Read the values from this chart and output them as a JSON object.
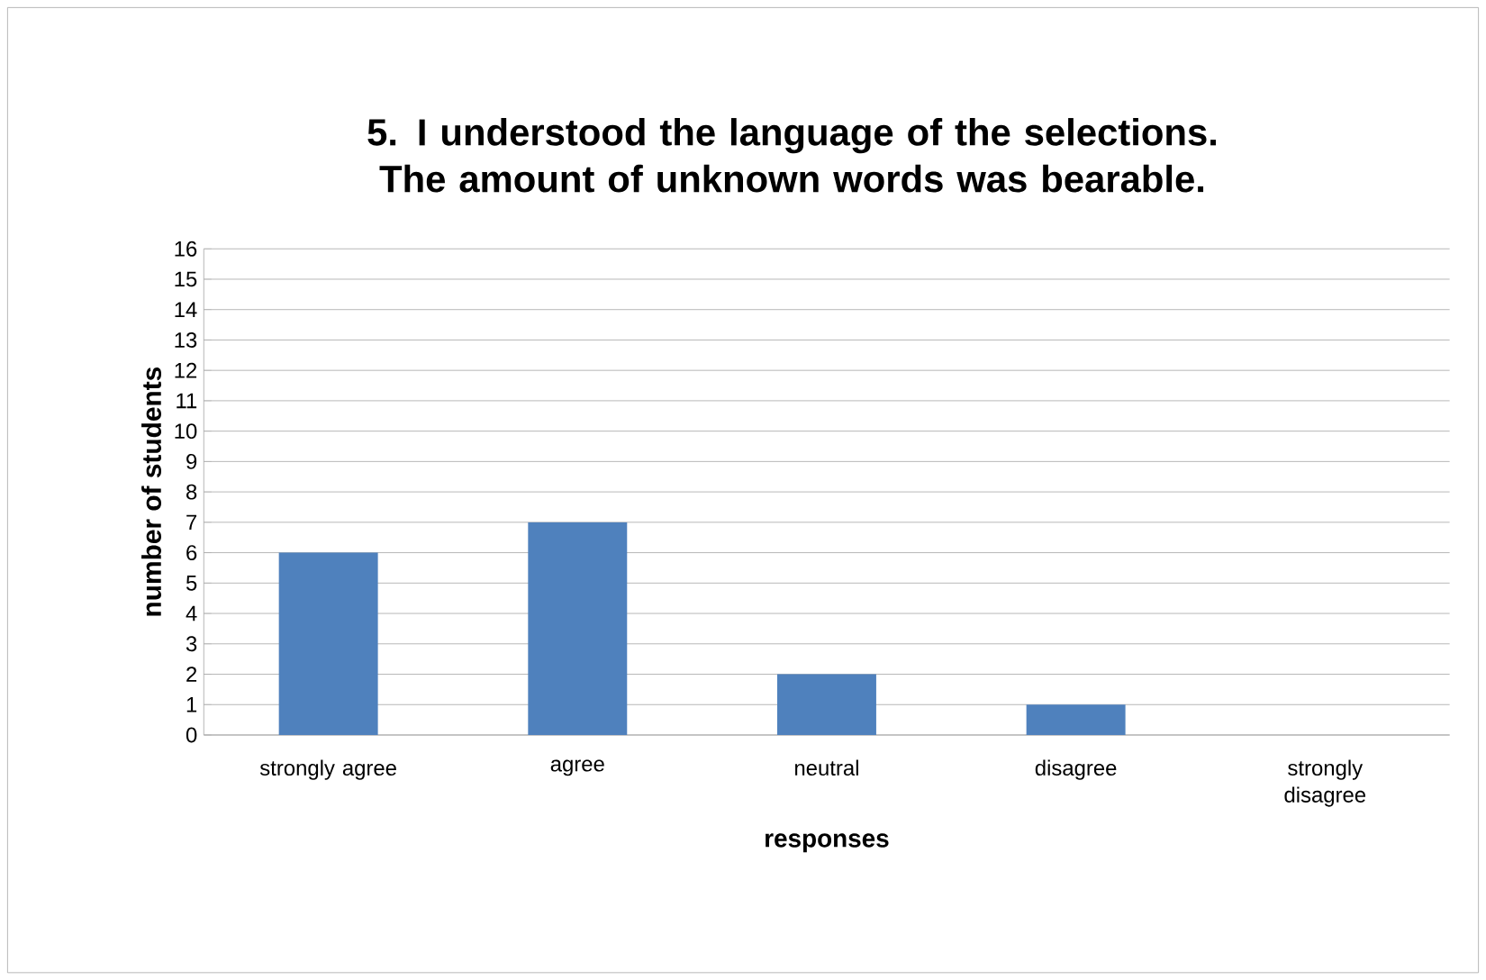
{
  "chart_data": {
    "type": "bar",
    "title": "5. I understood the language of the selections. The amount of unknown words was bearable.",
    "xlabel": "responses",
    "ylabel": "number of students",
    "categories": [
      "strongly agree",
      "agree",
      "neutral",
      "disagree",
      "strongly disagree"
    ],
    "values": [
      6,
      7,
      2,
      1,
      0
    ],
    "color": "#4f81bd",
    "ylim": [
      0,
      16
    ],
    "yticks": [
      0,
      1,
      2,
      3,
      4,
      5,
      6,
      7,
      8,
      9,
      10,
      11,
      12,
      13,
      14,
      15,
      16
    ],
    "grid": "y"
  }
}
